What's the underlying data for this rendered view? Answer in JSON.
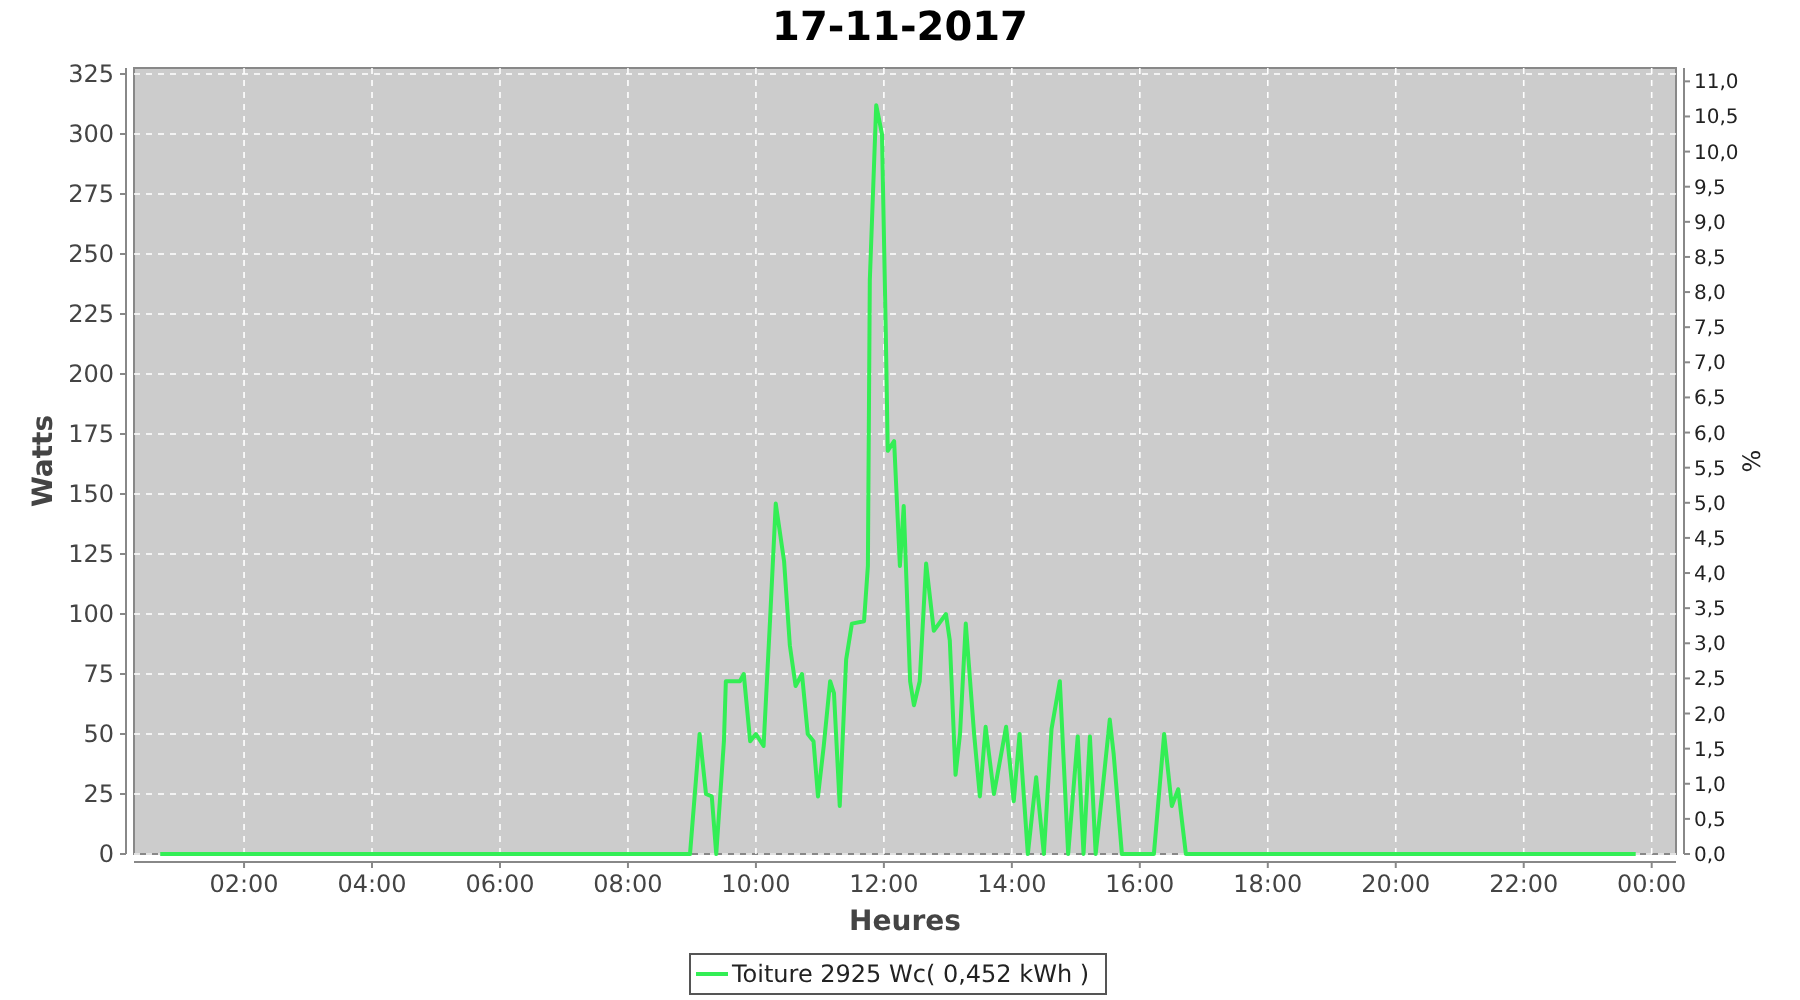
{
  "chart_data": {
    "type": "line",
    "title": "17-11-2017",
    "xlabel": "Heures",
    "ylabel": "Watts",
    "y2label": "%",
    "xlim": [
      0.28,
      24.38
    ],
    "xticks": [
      {
        "value": 2,
        "label": "02:00"
      },
      {
        "value": 4,
        "label": "04:00"
      },
      {
        "value": 6,
        "label": "06:00"
      },
      {
        "value": 8,
        "label": "08:00"
      },
      {
        "value": 10,
        "label": "10:00"
      },
      {
        "value": 12,
        "label": "12:00"
      },
      {
        "value": 14,
        "label": "14:00"
      },
      {
        "value": 16,
        "label": "16:00"
      },
      {
        "value": 18,
        "label": "18:00"
      },
      {
        "value": 20,
        "label": "20:00"
      },
      {
        "value": 22,
        "label": "22:00"
      },
      {
        "value": 24,
        "label": "00:00"
      }
    ],
    "ylim": [
      0,
      327.5
    ],
    "yticks": [
      0,
      25,
      50,
      75,
      100,
      125,
      150,
      175,
      200,
      225,
      250,
      275,
      300,
      325
    ],
    "y2lim": [
      0,
      11.19
    ],
    "y2ticks": [
      {
        "value": 0,
        "label": "0,0"
      },
      {
        "value": 0.5,
        "label": "0,5"
      },
      {
        "value": 1,
        "label": "1,0"
      },
      {
        "value": 1.5,
        "label": "1,5"
      },
      {
        "value": 2,
        "label": "2,0"
      },
      {
        "value": 2.5,
        "label": "2,5"
      },
      {
        "value": 3,
        "label": "3,0"
      },
      {
        "value": 3.5,
        "label": "3,5"
      },
      {
        "value": 4,
        "label": "4,0"
      },
      {
        "value": 4.5,
        "label": "4,5"
      },
      {
        "value": 5,
        "label": "5,0"
      },
      {
        "value": 5.5,
        "label": "5,5"
      },
      {
        "value": 6,
        "label": "6,0"
      },
      {
        "value": 6.5,
        "label": "6,5"
      },
      {
        "value": 7,
        "label": "7,0"
      },
      {
        "value": 7.5,
        "label": "7,5"
      },
      {
        "value": 8,
        "label": "8,0"
      },
      {
        "value": 8.5,
        "label": "8,5"
      },
      {
        "value": 9,
        "label": "9,0"
      },
      {
        "value": 9.5,
        "label": "9,5"
      },
      {
        "value": 10,
        "label": "10,0"
      },
      {
        "value": 10.5,
        "label": "10,5"
      },
      {
        "value": 11,
        "label": "11,0"
      }
    ],
    "grid": true,
    "legend": "bottom",
    "series": [
      {
        "name": "Toiture 2925 Wc( 0,452 kWh )",
        "color": "#33ee55",
        "x": [
          0.69,
          4,
          8,
          8.97,
          9.12,
          9.22,
          9.31,
          9.38,
          9.5,
          9.53,
          9.75,
          9.81,
          9.91,
          10.0,
          10.12,
          10.22,
          10.31,
          10.44,
          10.53,
          10.62,
          10.72,
          10.81,
          10.9,
          10.97,
          11.06,
          11.16,
          11.22,
          11.31,
          11.41,
          11.5,
          11.69,
          11.75,
          11.78,
          11.88,
          11.97,
          12.03,
          12.06,
          12.16,
          12.25,
          12.31,
          12.41,
          12.47,
          12.56,
          12.66,
          12.78,
          12.97,
          13.03,
          13.12,
          13.19,
          13.28,
          13.41,
          13.5,
          13.59,
          13.72,
          13.91,
          14.03,
          14.12,
          14.25,
          14.38,
          14.5,
          14.62,
          14.75,
          14.88,
          15.03,
          15.12,
          15.22,
          15.31,
          15.41,
          15.53,
          15.59,
          15.72,
          16.22,
          16.38,
          16.5,
          16.6,
          16.72,
          20,
          23.75
        ],
        "values": [
          0,
          0,
          0,
          0,
          50,
          25,
          24,
          0,
          47,
          72,
          72,
          75,
          47,
          50,
          45,
          97,
          146,
          122,
          87,
          70,
          75,
          50,
          47,
          24,
          45,
          72,
          67,
          20,
          81,
          96,
          97,
          120,
          239,
          312,
          300,
          217,
          168,
          172,
          120,
          145,
          72,
          62,
          72,
          121,
          93,
          100,
          89,
          33,
          50,
          96,
          50,
          24,
          53,
          25,
          53,
          22,
          50,
          0,
          32,
          0,
          52,
          72,
          0,
          49,
          0,
          49,
          0,
          25,
          56,
          42,
          0,
          0,
          50,
          20,
          27,
          0,
          0,
          0
        ]
      }
    ]
  }
}
